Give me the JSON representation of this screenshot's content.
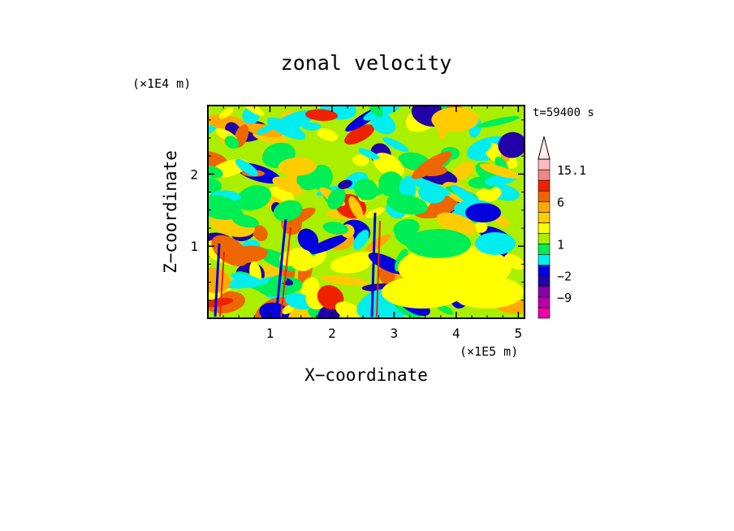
{
  "chart_data": {
    "type": "heatmap",
    "title": "zonal velocity",
    "xlabel": "X−coordinate",
    "ylabel": "Z−coordinate",
    "x_unit": "(×1E5 m)",
    "y_unit": "(×1E4 m)",
    "time_label": "t=59400 s",
    "xlim": [
      0,
      5.1
    ],
    "ylim": [
      0,
      2.95
    ],
    "x_ticks": [
      "1",
      "2",
      "3",
      "4",
      "5"
    ],
    "x_tick_values": [
      1,
      2,
      3,
      4,
      5
    ],
    "y_ticks": [
      "1",
      "2"
    ],
    "y_tick_values": [
      1,
      2
    ],
    "colorbar": {
      "labels": [
        "15.1",
        "6",
        "1",
        "−2",
        "−9"
      ],
      "label_values": [
        15.1,
        6,
        1,
        -2,
        -9
      ],
      "levels": [
        -16,
        -12,
        -9,
        -6,
        -2,
        -1,
        0,
        1,
        2,
        3,
        4,
        6,
        9,
        12,
        15.1
      ],
      "colors": [
        "#ee00aa",
        "#bb00aa",
        "#8800aa",
        "#2200aa",
        "#0000dd",
        "#00eeee",
        "#00ee55",
        "#aaee00",
        "#ffff00",
        "#ffcc00",
        "#ffaa00",
        "#ee6600",
        "#ee2200",
        "#ee8888",
        "#ffbbbb"
      ],
      "extend": "max"
    },
    "grid": false
  }
}
